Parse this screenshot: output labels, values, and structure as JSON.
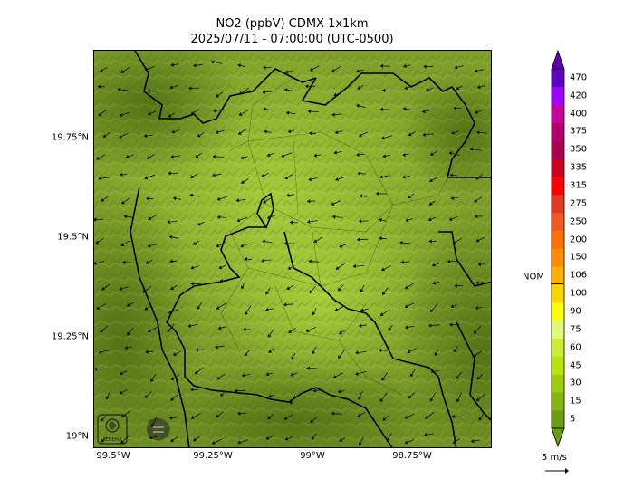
{
  "title": {
    "line1": "NO2 (ppbV) CDMX 1x1km",
    "line2": "2025/07/11 - 07:00:00 (UTC-0500)"
  },
  "map": {
    "y_ticks": [
      {
        "label": "19.75°N",
        "value": 19.75
      },
      {
        "label": "19.5°N",
        "value": 19.5
      },
      {
        "label": "19.25°N",
        "value": 19.25
      },
      {
        "label": "19°N",
        "value": 19.0
      }
    ],
    "x_ticks": [
      {
        "label": "99.5°W",
        "value": -99.5
      },
      {
        "label": "99.25°W",
        "value": -99.25
      },
      {
        "label": "99°W",
        "value": -99.0
      },
      {
        "label": "98.75°W",
        "value": -98.75
      }
    ],
    "lat_range": [
      18.97,
      19.97
    ],
    "lon_range": [
      -99.55,
      -98.55
    ],
    "logos": [
      {
        "name": "sedema-logo",
        "text": "SEDEMA"
      },
      {
        "name": "agency-logo",
        "text": ""
      }
    ]
  },
  "colorbar": {
    "levels": [
      "5",
      "15",
      "30",
      "45",
      "60",
      "75",
      "90",
      "100",
      "106",
      "150",
      "200",
      "250",
      "275",
      "315",
      "335",
      "350",
      "375",
      "400",
      "420",
      "470"
    ],
    "colors": [
      "#6b9e10",
      "#85b50f",
      "#9fcc0c",
      "#b7e30a",
      "#cbec33",
      "#e2f87a",
      "#ffff00",
      "#ffd400",
      "#ffb000",
      "#ff8c00",
      "#ff7000",
      "#f05a1e",
      "#e03a22",
      "#ff0000",
      "#c8001e",
      "#aa0050",
      "#b4006e",
      "#c8009c",
      "#a000ff",
      "#6000c0"
    ],
    "extend_low_color": "#6b9e10",
    "extend_high_color": "#5a00b0",
    "nom_label": "NOM",
    "nom_value": 106
  },
  "wind_key": {
    "label": "5 m/s"
  }
}
